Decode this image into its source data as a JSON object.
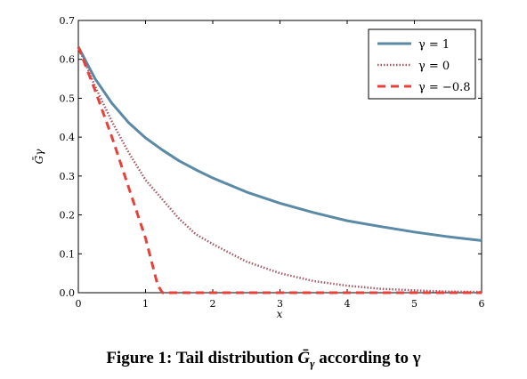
{
  "caption": {
    "prefix": "Figure 1: Tail distribution ",
    "symbol": "Ḡ",
    "subscript": "γ",
    "suffix": " according to γ"
  },
  "colors": {
    "series_gamma_1": "#5b8aa6",
    "series_gamma_0": "#a35a66",
    "series_gamma_neg08": "#e8403a"
  },
  "chart_data": {
    "type": "line",
    "title": "",
    "xlabel": "x",
    "ylabel": "Ḡγ",
    "xlim": [
      0,
      6
    ],
    "ylim": [
      0,
      0.7
    ],
    "xticks": [
      0,
      1,
      2,
      3,
      4,
      5,
      6
    ],
    "yticks": [
      0.0,
      0.1,
      0.2,
      0.3,
      0.4,
      0.5,
      0.6,
      0.7
    ],
    "xtick_labels": [
      "0",
      "1",
      "2",
      "3",
      "4",
      "5",
      "6"
    ],
    "ytick_labels": [
      "0.0",
      "0.1",
      "0.2",
      "0.3",
      "0.4",
      "0.5",
      "0.6",
      "0.7"
    ],
    "grid": false,
    "legend_position": "top-right",
    "series": [
      {
        "name": "γ = 1",
        "style": "solid",
        "x": [
          0,
          0.25,
          0.5,
          0.75,
          1,
          1.25,
          1.5,
          1.75,
          2,
          2.5,
          3,
          3.5,
          4,
          4.5,
          5,
          5.5,
          6
        ],
        "y": [
          0.632,
          0.55,
          0.487,
          0.437,
          0.398,
          0.367,
          0.339,
          0.316,
          0.295,
          0.259,
          0.23,
          0.206,
          0.185,
          0.17,
          0.156,
          0.144,
          0.134
        ]
      },
      {
        "name": "γ = 0",
        "style": "dotted",
        "x": [
          0,
          0.25,
          0.5,
          0.75,
          1,
          1.25,
          1.5,
          1.75,
          2,
          2.5,
          3,
          3.5,
          4,
          4.5,
          5,
          5.5,
          6
        ],
        "y": [
          0.632,
          0.53,
          0.44,
          0.36,
          0.29,
          0.24,
          0.19,
          0.15,
          0.125,
          0.08,
          0.05,
          0.03,
          0.018,
          0.01,
          0.006,
          0.003,
          0.002
        ]
      },
      {
        "name": "γ = −0.8",
        "style": "dashed",
        "x": [
          0,
          0.25,
          0.5,
          0.75,
          1,
          1.18,
          1.25,
          2,
          3,
          4,
          5,
          6
        ],
        "y": [
          0.632,
          0.52,
          0.4,
          0.27,
          0.14,
          0.02,
          0.0,
          0.0,
          0.0,
          0.0,
          0.0,
          0.0
        ]
      }
    ]
  }
}
